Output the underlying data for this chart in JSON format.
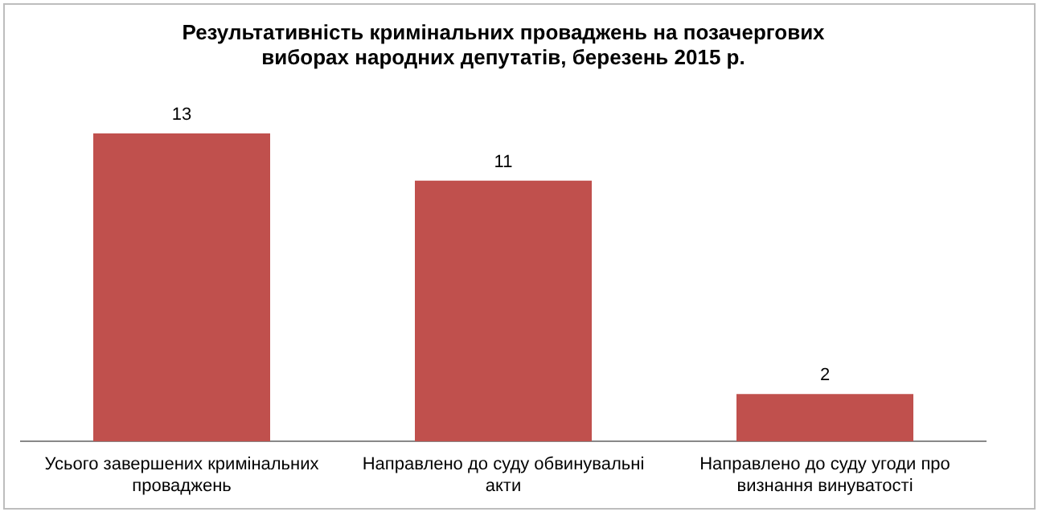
{
  "chart_data": {
    "type": "bar",
    "title": "Результативність кримінальних проваджень на позачергових виборах народних депутатів, березень 2015 р.",
    "categories": [
      "Усього завершених кримінальних проваджень",
      "Направлено до суду обвинувальні акти",
      "Направлено до суду угоди про визнання винуватості"
    ],
    "values": [
      13,
      11,
      2
    ],
    "color": "#c0504d",
    "data_labels": true,
    "grid": false,
    "legend": false
  }
}
